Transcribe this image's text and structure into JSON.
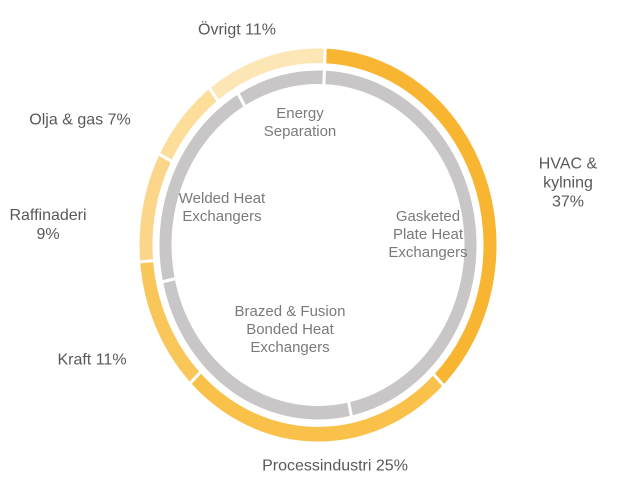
{
  "chart_data": {
    "type": "donut",
    "series": [
      {
        "categories": [
          "HVAC & kylning",
          "Processindustri",
          "Kraft",
          "Raffinaderi",
          "Olja & gas",
          "Övrigt"
        ],
        "values": [
          37,
          25,
          11,
          9,
          7,
          11
        ],
        "value_labels": [
          "37%",
          "25%",
          "11%",
          "9%",
          "7%",
          "11%"
        ],
        "colors": [
          "#f8b532",
          "#f9c04a",
          "#f9c65a",
          "#fbd68a",
          "#fcdd9a",
          "#fde6b6"
        ]
      },
      {
        "categories": [
          "Gasketed Plate Heat Exchangers",
          "Brazed & Fusion Bonded Heat Exchangers",
          "Welded Heat Exchangers",
          "Energy Separation"
        ],
        "values": [
          46,
          25,
          20,
          9
        ],
        "colors": [
          "#c8c6c7",
          "#c8c6c7",
          "#c8c6c7",
          "#c8c6c7"
        ]
      }
    ]
  }
}
